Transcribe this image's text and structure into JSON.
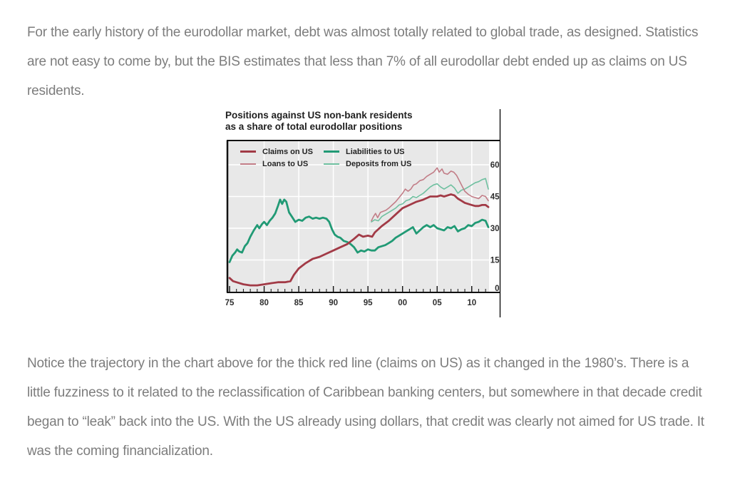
{
  "page": {
    "background_color": "#ffffff",
    "body_text_color": "#7d7d7d"
  },
  "paragraphs": {
    "intro": "For the early history of the eurodollar market, debt was almost totally related to global trade, as designed. Statistics are not easy to come by, but the BIS estimates that less than 7% of all eurodollar debt ended up as claims on US residents.",
    "analysis": "Notice the trajectory in the chart above for the thick red line (claims on US) as it changed in the 1980’s. There is a little fuzziness to it related to the reclassification of Caribbean banking centers, but somewhere in that decade credit began to “leak” back into the US. With the US already using dollars, that credit was clearly not aimed for US trade. It was the coming financialization."
  },
  "chart_data": {
    "type": "line",
    "title_line1": "Positions against US non-bank residents",
    "title_line2": "as a share of total eurodollar positions",
    "plot_bg": "#e8e8e8",
    "grid_color": "#ffffff",
    "axis_color": "#111111",
    "legend_position": "top-left-inside",
    "x_axis": {
      "range": [
        1975,
        2012.5
      ],
      "ticks": [
        1975,
        1980,
        1985,
        1990,
        1995,
        2000,
        2005,
        2010
      ],
      "tick_labels": [
        "75",
        "80",
        "85",
        "90",
        "95",
        "00",
        "05",
        "10"
      ],
      "minor_tick_every": 1
    },
    "y_axis": {
      "range": [
        0,
        71
      ],
      "ticks": [
        0,
        15,
        30,
        45,
        60
      ],
      "tick_labels": [
        "0",
        "15",
        "30",
        "45",
        "60"
      ],
      "side": "right"
    },
    "series": [
      {
        "name": "Claims on US",
        "color": "#a23a46",
        "thick": true,
        "x": [
          1975,
          1975.5,
          1976,
          1977,
          1978,
          1979,
          1980,
          1981,
          1982,
          1983,
          1983.8,
          1984.3,
          1985,
          1986,
          1987,
          1988,
          1989,
          1990,
          1991,
          1992,
          1993,
          1993.7,
          1994.3,
          1995,
          1995.6,
          1996,
          1997,
          1998,
          1999,
          2000,
          2001,
          2002,
          2003,
          2004,
          2005,
          2005.5,
          2006,
          2006.5,
          2007,
          2007.5,
          2008,
          2008.5,
          2009,
          2010,
          2010.5,
          2011,
          2011.5,
          2012,
          2012.4
        ],
        "values": [
          6.5,
          5,
          4.5,
          3.5,
          3,
          3,
          3.5,
          4,
          4.5,
          4.5,
          5,
          8,
          11,
          13.5,
          15.5,
          16.5,
          18,
          19.5,
          21,
          22.5,
          25,
          27,
          26,
          26.5,
          26,
          28,
          31,
          33.5,
          36.5,
          39.5,
          41,
          42.5,
          43.5,
          45,
          45,
          45.5,
          45,
          45.5,
          46,
          45.5,
          44,
          43,
          42,
          41,
          40.5,
          40.5,
          41,
          41,
          40
        ]
      },
      {
        "name": "Loans to US",
        "color": "#c27d87",
        "thick": false,
        "x": [
          1995.5,
          1995.8,
          1996.1,
          1996.4,
          1996.8,
          1997.2,
          1997.6,
          1998,
          1998.5,
          1999,
          1999.5,
          2000,
          2000.4,
          2000.8,
          2001.2,
          2001.6,
          2002,
          2002.5,
          2003,
          2003.5,
          2004,
          2004.5,
          2005,
          2005.3,
          2005.7,
          2006,
          2006.5,
          2007,
          2007.4,
          2007.8,
          2008.2,
          2008.6,
          2009,
          2009.5,
          2010,
          2010.5,
          2011,
          2011.5,
          2012,
          2012.4
        ],
        "values": [
          33.5,
          35.5,
          37,
          35,
          37.5,
          38,
          38.5,
          39.5,
          41,
          42.5,
          44.5,
          46.5,
          48.5,
          47.5,
          48.5,
          50.5,
          51,
          52.5,
          53,
          54.5,
          55.5,
          56.5,
          58.5,
          56.5,
          58,
          56,
          55.5,
          57,
          56.5,
          55,
          52.5,
          50,
          47.5,
          46,
          45,
          44.5,
          44,
          45.5,
          45,
          43
        ]
      },
      {
        "name": "Liabilities to US",
        "color": "#219a75",
        "thick": true,
        "x": [
          1975,
          1975.4,
          1975.8,
          1976.1,
          1976.4,
          1976.8,
          1977.2,
          1977.6,
          1978,
          1978.5,
          1979,
          1979.3,
          1979.7,
          1980,
          1980.4,
          1980.8,
          1981.2,
          1981.6,
          1982,
          1982.3,
          1982.6,
          1982.9,
          1983.2,
          1983.6,
          1984,
          1984.5,
          1985,
          1985.5,
          1986,
          1986.5,
          1987,
          1987.5,
          1988,
          1988.5,
          1989,
          1989.4,
          1989.8,
          1990.2,
          1990.6,
          1991,
          1991.5,
          1992,
          1992.5,
          1993,
          1993.5,
          1994,
          1994.5,
          1995,
          1995.5,
          1996,
          1996.5,
          1997,
          1997.5,
          1998,
          1998.5,
          1999,
          1999.5,
          2000,
          2000.5,
          2001,
          2001.5,
          2002,
          2002.5,
          2003,
          2003.5,
          2004,
          2004.5,
          2005,
          2005.5,
          2006,
          2006.5,
          2007,
          2007.5,
          2008,
          2008.5,
          2009,
          2009.5,
          2010,
          2010.5,
          2011,
          2011.5,
          2012,
          2012.4
        ],
        "values": [
          14,
          17,
          18.5,
          20,
          19,
          18.5,
          21.5,
          23,
          26,
          29,
          31.5,
          30,
          32,
          33,
          31.5,
          33.5,
          35,
          37,
          40.5,
          43.5,
          41.5,
          43.5,
          42.5,
          37.5,
          35.5,
          33,
          34,
          33.5,
          35,
          35.5,
          34.5,
          35,
          34.5,
          35,
          34.5,
          33,
          29.5,
          27,
          26,
          25.5,
          24,
          23.5,
          22.5,
          21,
          18.5,
          19.5,
          19,
          20,
          19.5,
          19.5,
          21,
          21.5,
          22,
          23,
          24,
          25.5,
          26.5,
          27.5,
          28.5,
          29.5,
          30.5,
          27.5,
          29,
          30.5,
          31.5,
          30.5,
          31.5,
          30,
          29.5,
          29,
          30.5,
          30,
          31,
          28.5,
          29.5,
          30,
          31.5,
          31,
          32.5,
          33,
          34,
          33.5,
          30.5
        ]
      },
      {
        "name": "Deposits from US",
        "color": "#6fc0a0",
        "thick": false,
        "x": [
          1995.5,
          1996,
          1996.5,
          1997,
          1997.5,
          1998,
          1998.5,
          1999,
          1999.5,
          2000,
          2000.5,
          2001,
          2001.5,
          2002,
          2002.5,
          2003,
          2003.5,
          2004,
          2004.5,
          2005,
          2005.5,
          2006,
          2006.5,
          2007,
          2007.5,
          2008,
          2008.5,
          2009,
          2009.5,
          2010,
          2010.5,
          2011,
          2011.5,
          2012,
          2012.4
        ],
        "values": [
          33,
          34,
          33.5,
          35.5,
          36.5,
          37.5,
          38.5,
          39.5,
          41,
          41.5,
          43,
          43.5,
          45,
          44.5,
          45.5,
          46.5,
          48,
          49.5,
          50.5,
          51,
          49.5,
          48.5,
          49.5,
          50.5,
          49,
          46.5,
          48,
          48.5,
          49.5,
          50.5,
          51.5,
          52,
          53,
          53.5,
          48.5
        ]
      }
    ]
  }
}
